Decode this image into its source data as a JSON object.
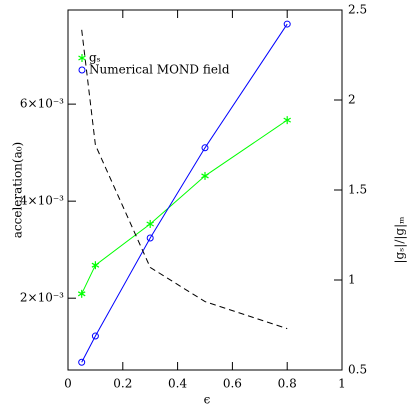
{
  "chart_data": {
    "type": "line",
    "x_label": "ϵ",
    "y_label": "acceleration(a₀)",
    "y2_label": "|gₛ|/|g|ₘ",
    "x": [
      0.05,
      0.1,
      0.3,
      0.5,
      0.8
    ],
    "series": [
      {
        "name": "gₛ",
        "color": "#00ff00",
        "marker": "star",
        "values": [
          0.00209,
          0.00268,
          0.00353,
          0.00452,
          0.00567
        ]
      },
      {
        "name": "Numerical MOND field",
        "color": "#0000ff",
        "marker": "circle",
        "values": [
          0.00068,
          0.00122,
          0.00324,
          0.0051,
          0.00765
        ]
      },
      {
        "color": "#000000",
        "dash": true,
        "axis": "y2",
        "values": [
          2.39,
          1.75,
          1.07,
          0.88,
          0.73
        ]
      }
    ],
    "xlim": [
      0,
      1
    ],
    "xticks": [
      0,
      0.2,
      0.4,
      0.6,
      0.8,
      1
    ],
    "ylim": [
      0.00052,
      0.00794
    ],
    "yticks": [
      {
        "value": 0.002,
        "label": "2×10⁻³"
      },
      {
        "value": 0.004,
        "label": "4×10⁻³"
      },
      {
        "value": 0.006,
        "label": "6×10⁻³"
      }
    ],
    "y2lim": [
      0.5,
      2.5
    ],
    "y2ticks": [
      0.5,
      1,
      1.5,
      2,
      2.5
    ],
    "legend": "upper left"
  }
}
